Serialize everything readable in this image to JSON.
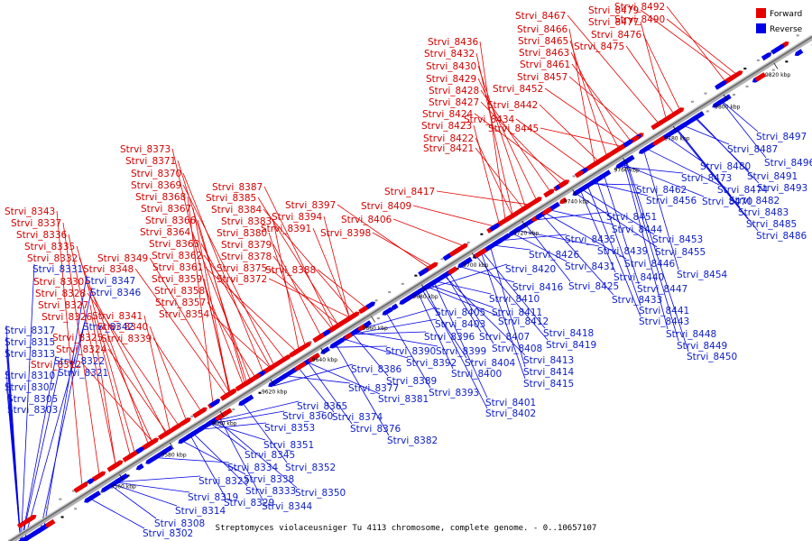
{
  "caption": "Streptomyces violaceusniger Tu 4113 chromosome, complete genome. - 0..10657107",
  "legend": {
    "forward_label": "Forward",
    "reverse_label": "Reverse",
    "forward_color": "#e60000",
    "reverse_color": "#0000e6"
  },
  "ticks": [
    "9560 kbp",
    "9580 kbp",
    "9600 kbp",
    "9620 kbp",
    "9640 kbp",
    "9660 kbp",
    "9680 kbp",
    "9700 kbp",
    "9720 kbp",
    "9740 kbp",
    "9760 kbp",
    "9780 kbp",
    "9800 kbp",
    "9820 kbp"
  ],
  "forward_labels": [
    "Strvi_8343",
    "Strvi_8337",
    "Strvi_8336",
    "Strvi_8335",
    "Strvi_8332",
    "Strvi_8330",
    "Strvi_8328",
    "Strvi_8327",
    "Strvi_8326",
    "Strvi_8325",
    "Strvi_8324",
    "Strvi_8312",
    "Strvi_8349",
    "Strvi_8348",
    "Strvi_8341",
    "Strvi_8340",
    "Strvi_8339",
    "Strvi_8373",
    "Strvi_8371",
    "Strvi_8370",
    "Strvi_8369",
    "Strvi_8368",
    "Strvi_8367",
    "Strvi_8366",
    "Strvi_8364",
    "Strvi_8363",
    "Strvi_8362",
    "Strvi_8361",
    "Strvi_8359",
    "Strvi_8358",
    "Strvi_8357",
    "Strvi_8354",
    "Strvi_8387",
    "Strvi_8385",
    "Strvi_8384",
    "Strvi_8383",
    "Strvi_8380",
    "Strvi_8379",
    "Strvi_8378",
    "Strvi_8375",
    "Strvi_8372",
    "Strvi_8397",
    "Strvi_8394",
    "Strvi_8391",
    "Strvi_8388",
    "Strvi_8398",
    "Strvi_8406",
    "Strvi_8409",
    "Strvi_8417",
    "Strvi_8436",
    "Strvi_8432",
    "Strvi_8430",
    "Strvi_8429",
    "Strvi_8428",
    "Strvi_8427",
    "Strvi_8424",
    "Strvi_8423",
    "Strvi_8422",
    "Strvi_8421",
    "Strvi_8442",
    "Strvi_8434",
    "Strvi_8445",
    "Strvi_8467",
    "Strvi_8466",
    "Strvi_8465",
    "Strvi_8463",
    "Strvi_8461",
    "Strvi_8457",
    "Strvi_8452",
    "Strvi_8479",
    "Strvi_8477",
    "Strvi_8476",
    "Strvi_8475",
    "Strvi_8492",
    "Strvi_8490"
  ],
  "reverse_labels": [
    "Strvi_8331",
    "Strvi_8347",
    "Strvi_8346",
    "Strvi_8342",
    "Strvi_8317",
    "Strvi_8315",
    "Strvi_8313",
    "Strvi_8322",
    "Strvi_8321",
    "Strvi_8310",
    "Strvi_8307",
    "Strvi_8305",
    "Strvi_8303",
    "Strvi_8308",
    "Strvi_8302",
    "Strvi_8314",
    "Strvi_8319",
    "Strvi_8323",
    "Strvi_8329",
    "Strvi_8344",
    "Strvi_8333",
    "Strvi_8338",
    "Strvi_8334",
    "Strvi_8350",
    "Strvi_8345",
    "Strvi_8352",
    "Strvi_8351",
    "Strvi_8353",
    "Strvi_8360",
    "Strvi_8365",
    "Strvi_8374",
    "Strvi_8376",
    "Strvi_8382",
    "Strvi_8377",
    "Strvi_8381",
    "Strvi_8386",
    "Strvi_8389",
    "Strvi_8393",
    "Strvi_8390",
    "Strvi_8392",
    "Strvi_8396",
    "Strvi_8399",
    "Strvi_8400",
    "Strvi_8404",
    "Strvi_8401",
    "Strvi_8402",
    "Strvi_8405",
    "Strvi_8403",
    "Strvi_8407",
    "Strvi_8408",
    "Strvi_8410",
    "Strvi_8411",
    "Strvi_8412",
    "Strvi_8413",
    "Strvi_8414",
    "Strvi_8415",
    "Strvi_8416",
    "Strvi_8418",
    "Strvi_8419",
    "Strvi_8420",
    "Strvi_8426",
    "Strvi_8425",
    "Strvi_8431",
    "Strvi_8435",
    "Strvi_8433",
    "Strvi_8439",
    "Strvi_8440",
    "Strvi_8441",
    "Strvi_8443",
    "Strvi_8444",
    "Strvi_8451",
    "Strvi_8446",
    "Strvi_8447",
    "Strvi_8448",
    "Strvi_8449",
    "Strvi_8450",
    "Strvi_8453",
    "Strvi_8455",
    "Strvi_8454",
    "Strvi_8462",
    "Strvi_8456",
    "Strvi_8473",
    "Strvi_8474",
    "Strvi_8470",
    "Strvi_8480",
    "Strvi_8487",
    "Strvi_8482",
    "Strvi_8483",
    "Strvi_8485",
    "Strvi_8486",
    "Strvi_8497",
    "Strvi_8496",
    "Strvi_8491",
    "Strvi_8493"
  ]
}
